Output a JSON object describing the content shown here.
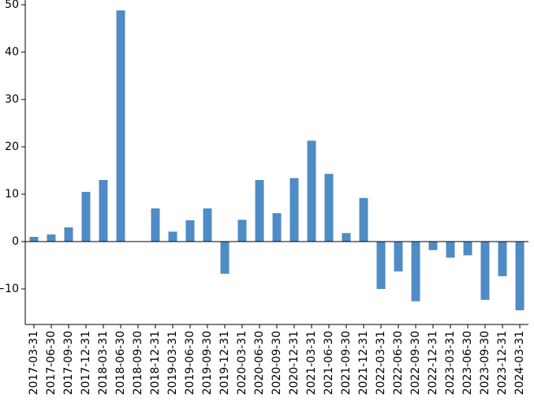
{
  "chart_data": {
    "type": "bar",
    "title": "",
    "xlabel": "",
    "ylabel": "",
    "categories": [
      "2017-03-31",
      "2017-06-30",
      "2017-09-30",
      "2017-12-31",
      "2018-03-31",
      "2018-06-30",
      "2018-09-30",
      "2018-12-31",
      "2019-03-31",
      "2019-06-30",
      "2019-09-30",
      "2019-12-31",
      "2020-03-31",
      "2020-06-30",
      "2020-09-30",
      "2020-12-31",
      "2021-03-31",
      "2021-06-30",
      "2021-09-30",
      "2021-12-31",
      "2022-03-31",
      "2022-06-30",
      "2022-09-30",
      "2022-12-31",
      "2023-03-31",
      "2023-06-30",
      "2023-09-30",
      "2023-12-31",
      "2024-03-31"
    ],
    "values": [
      1.0,
      1.5,
      3.0,
      10.5,
      13.0,
      48.8,
      0.0,
      7.0,
      2.1,
      4.5,
      7.0,
      -6.8,
      4.6,
      13.0,
      6.0,
      13.4,
      21.3,
      14.3,
      1.8,
      9.2,
      -10.0,
      -6.3,
      -12.6,
      -1.8,
      -3.4,
      -2.9,
      -12.3,
      -7.3,
      -14.5
    ],
    "ylim": [
      -17.5,
      51
    ],
    "yticks": [
      -10,
      0,
      10,
      20,
      30,
      40,
      50
    ],
    "ytick_labels": [
      "−10",
      "0",
      "10",
      "20",
      "30",
      "40",
      "50"
    ],
    "bar_color": "#4f8bc4",
    "grid": false,
    "legend": "none"
  }
}
